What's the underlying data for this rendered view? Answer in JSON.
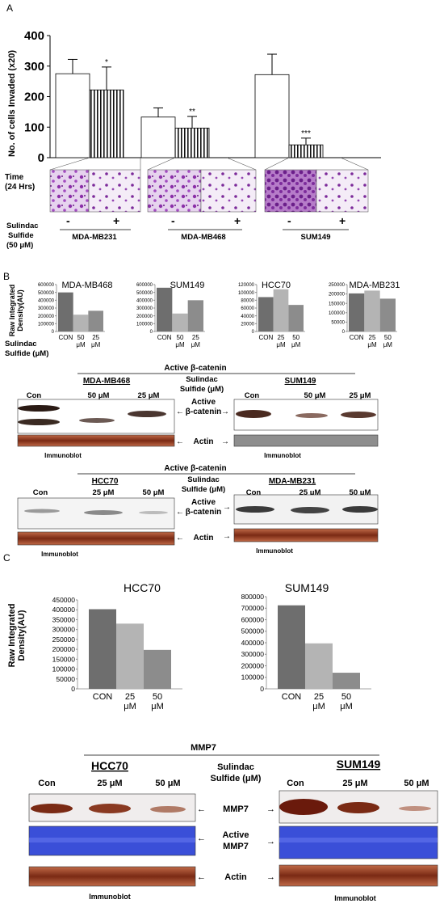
{
  "panel_a": {
    "letter": "A",
    "ylabel": "No. of cells Invaded (x20)",
    "time_label": [
      "Time",
      "(24 Hrs)"
    ],
    "sulindac_label": [
      "Sulindac",
      "Sulfide",
      "(50 μM)"
    ],
    "minus": "-",
    "plus": "+"
  },
  "panel_b": {
    "letter": "B",
    "ylabel": [
      "Raw Integrated",
      "Density(AU)"
    ],
    "sulindac_label": [
      "Sulindac",
      "Sulfide (μM)"
    ],
    "blot1_title": "Active β-catenin",
    "blot2_title": "Active β-catenin",
    "mid_label": [
      "Sulindac",
      "Sulfide (μM)"
    ],
    "active_label": [
      "Active",
      "β-catenin"
    ],
    "actin": "Actin",
    "immunoblot": "Immunoblot",
    "lanes1_left": [
      "Con",
      "50 μM",
      "25 μM"
    ],
    "lanes1_right": [
      "Con",
      "50 μM",
      "25 μM"
    ],
    "lanes2_left": [
      "Con",
      "25 μM",
      "50 μM"
    ],
    "lanes2_right": [
      "Con",
      "25 μM",
      "50 μM"
    ],
    "cells1": [
      "MDA-MB468",
      "SUM149"
    ],
    "cells2": [
      "HCC70",
      "MDA-MB231"
    ]
  },
  "panel_c": {
    "letter": "C",
    "ylabel": [
      "Raw Integrated",
      "Density(AU)"
    ],
    "blot_title": "MMP7",
    "cells": [
      "HCC70",
      "SUM149"
    ],
    "sulindac_label": [
      "Sulindac",
      "Sulfide (μM)"
    ],
    "lanes": [
      "Con",
      "25 μM",
      "50 μM"
    ],
    "mmp7": "MMP7",
    "active_mmp7": [
      "Active",
      "MMP7"
    ],
    "actin": "Actin",
    "immunoblot": "Immunoblot"
  },
  "colors": {
    "dark": "#6e6e6e",
    "light": "#b4b4b4",
    "mid": "#8c8c8c",
    "blot_brown": "#7a2a14",
    "coomassie": "#3a4fd8"
  },
  "chart_data": [
    {
      "type": "bar",
      "panel": "A",
      "ylabel": "No. of cells Invaded (x20)",
      "ylim": [
        0,
        400
      ],
      "yticks": [
        "0",
        "100",
        "200",
        "300",
        "400"
      ],
      "categories": [
        "MDA-MB231",
        "MDA-MB468",
        "SUM149"
      ],
      "series": [
        {
          "values": [
            275,
            133,
            272
          ],
          "errors": [
            47,
            30,
            67
          ]
        },
        {
          "values": [
            222,
            97,
            42
          ],
          "errors": [
            75,
            38,
            22
          ]
        }
      ],
      "significance": [
        "*",
        "**",
        "***"
      ]
    },
    {
      "type": "bar",
      "panel": "B",
      "title": "MDA-MB468",
      "categories": [
        "CON",
        "50 μM",
        "25 μM"
      ],
      "values": [
        500000,
        215000,
        265000
      ],
      "ylim": [
        0,
        600000
      ],
      "yticks": [
        "0",
        "100000",
        "200000",
        "300000",
        "400000",
        "500000",
        "600000"
      ]
    },
    {
      "type": "bar",
      "panel": "B",
      "title": "SUM149",
      "categories": [
        "CON",
        "50 μM",
        "25 μM"
      ],
      "values": [
        560000,
        230000,
        400000
      ],
      "ylim": [
        0,
        600000
      ],
      "yticks": [
        "0",
        "100000",
        "200000",
        "300000",
        "400000",
        "500000",
        "600000"
      ]
    },
    {
      "type": "bar",
      "panel": "B",
      "title": "HCC70",
      "categories": [
        "CON",
        "25 μM",
        "50 μM"
      ],
      "values": [
        88000,
        108000,
        68000
      ],
      "ylim": [
        0,
        120000
      ],
      "yticks": [
        "0",
        "20000",
        "40000",
        "60000",
        "80000",
        "100000",
        "120000"
      ]
    },
    {
      "type": "bar",
      "panel": "B",
      "title": "MDA-MB231",
      "categories": [
        "CON",
        "25 μM",
        "50 μM"
      ],
      "values": [
        203000,
        218000,
        175000
      ],
      "ylim": [
        0,
        250000
      ],
      "yticks": [
        "0",
        "50000",
        "100000",
        "150000",
        "200000",
        "250000"
      ]
    },
    {
      "type": "bar",
      "panel": "C",
      "title": "HCC70",
      "categories": [
        "CON",
        "25 μM",
        "50 μM"
      ],
      "values": [
        403000,
        330000,
        197000
      ],
      "ylim": [
        0,
        450000
      ],
      "yticks": [
        "0",
        "50000",
        "100000",
        "150000",
        "200000",
        "250000",
        "300000",
        "350000",
        "400000",
        "450000"
      ]
    },
    {
      "type": "bar",
      "panel": "C",
      "title": "SUM149",
      "categories": [
        "CON",
        "25 μM",
        "50 μM"
      ],
      "values": [
        725000,
        395000,
        140000
      ],
      "ylim": [
        0,
        800000
      ],
      "yticks": [
        "0",
        "100000",
        "200000",
        "300000",
        "400000",
        "500000",
        "600000",
        "700000",
        "800000"
      ]
    }
  ]
}
